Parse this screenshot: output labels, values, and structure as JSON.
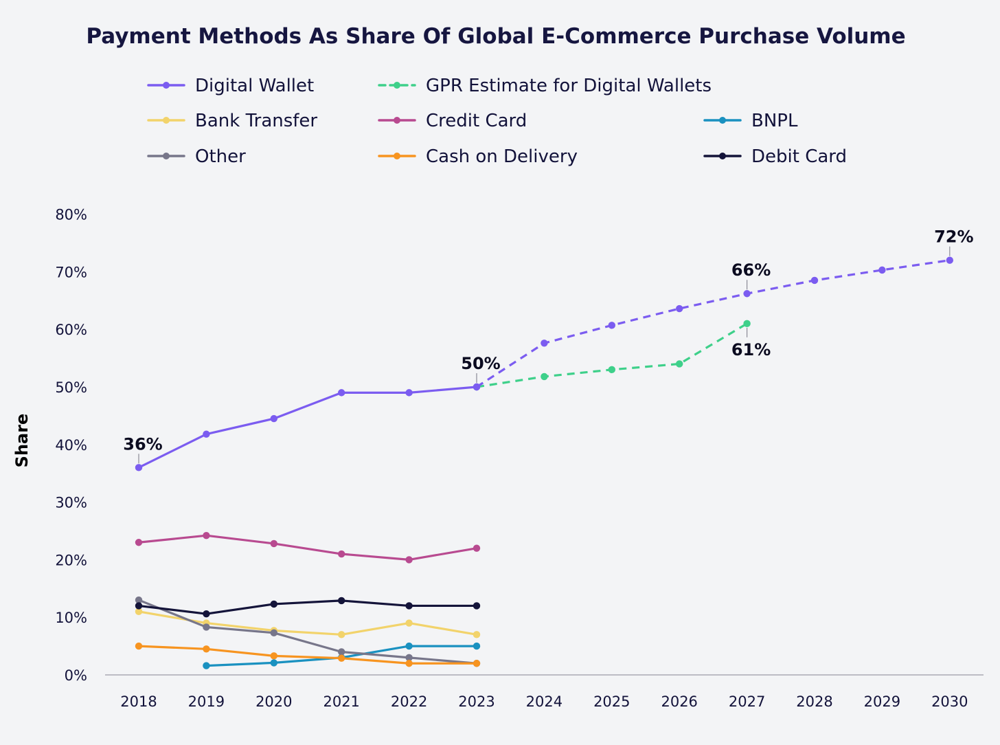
{
  "chart_data": {
    "type": "line",
    "title": "Payment Methods As Share Of Global E-Commerce Purchase Volume",
    "ylabel": "Share",
    "xlabel": "",
    "x": [
      "2018",
      "2019",
      "2020",
      "2021",
      "2022",
      "2023",
      "2024",
      "2025",
      "2026",
      "2027",
      "2028",
      "2029",
      "2030"
    ],
    "ylim": [
      0,
      80
    ],
    "yticks": [
      "0%",
      "10%",
      "20%",
      "30%",
      "40%",
      "50%",
      "60%",
      "70%",
      "80%"
    ],
    "grid": false,
    "legend_position": "top",
    "series": [
      {
        "name": "Digital Wallet",
        "color": "#7b5cf0",
        "style": "solid",
        "values": [
          36,
          41.8,
          44.5,
          49,
          49,
          50,
          null,
          null,
          null,
          null,
          null,
          null,
          null
        ]
      },
      {
        "name": "Digital Wallet",
        "color": "#7b5cf0",
        "style": "dashed",
        "legend": false,
        "values": [
          null,
          null,
          null,
          null,
          null,
          50,
          57.6,
          60.7,
          63.6,
          66.2,
          68.5,
          70.3,
          72
        ]
      },
      {
        "name": "GPR Estimate for Digital Wallets",
        "color": "#3ed08a",
        "style": "dashed",
        "values": [
          null,
          null,
          null,
          null,
          null,
          50,
          51.8,
          53,
          54,
          61,
          null,
          null,
          null
        ]
      },
      {
        "name": "Bank Transfer",
        "color": "#f2d36b",
        "style": "solid",
        "values": [
          11,
          9,
          7.7,
          7,
          9,
          7,
          null,
          null,
          null,
          null,
          null,
          null,
          null
        ]
      },
      {
        "name": "Credit Card",
        "color": "#b84a90",
        "style": "solid",
        "values": [
          23,
          24.2,
          22.8,
          21,
          20,
          22,
          null,
          null,
          null,
          null,
          null,
          null,
          null
        ]
      },
      {
        "name": "BNPL",
        "color": "#1a91c0",
        "style": "solid",
        "values": [
          null,
          1.6,
          2.1,
          3,
          5,
          5,
          null,
          null,
          null,
          null,
          null,
          null,
          null
        ]
      },
      {
        "name": "Other",
        "color": "#77768a",
        "style": "solid",
        "values": [
          13,
          8.3,
          7.3,
          4,
          3,
          2,
          null,
          null,
          null,
          null,
          null,
          null,
          null
        ]
      },
      {
        "name": "Cash on Delivery",
        "color": "#f79420",
        "style": "solid",
        "values": [
          5,
          4.5,
          3.3,
          2.9,
          2,
          2,
          null,
          null,
          null,
          null,
          null,
          null,
          null
        ]
      },
      {
        "name": "Debit Card",
        "color": "#14143a",
        "style": "solid",
        "values": [
          12,
          10.6,
          12.3,
          12.9,
          12,
          12,
          null,
          null,
          null,
          null,
          null,
          null,
          null
        ]
      }
    ],
    "legend": [
      {
        "label": "Digital Wallet",
        "color": "#7b5cf0",
        "style": "solid"
      },
      {
        "label": "GPR Estimate for Digital Wallets",
        "color": "#3ed08a",
        "style": "dashed"
      },
      {
        "label": "Bank Transfer",
        "color": "#f2d36b",
        "style": "solid"
      },
      {
        "label": "Credit Card",
        "color": "#b84a90",
        "style": "solid"
      },
      {
        "label": "BNPL",
        "color": "#1a91c0",
        "style": "solid"
      },
      {
        "label": "Other",
        "color": "#77768a",
        "style": "solid"
      },
      {
        "label": "Cash on Delivery",
        "color": "#f79420",
        "style": "solid"
      },
      {
        "label": "Debit Card",
        "color": "#14143a",
        "style": "solid"
      }
    ],
    "annotations": [
      {
        "text": "36%",
        "x": "2018",
        "y": 36,
        "placement": "above"
      },
      {
        "text": "50%",
        "x": "2023",
        "y": 50,
        "placement": "above"
      },
      {
        "text": "66%",
        "x": "2027",
        "y": 66.2,
        "placement": "above"
      },
      {
        "text": "72%",
        "x": "2030",
        "y": 72,
        "placement": "above"
      },
      {
        "text": "61%",
        "x": "2027",
        "y": 61,
        "placement": "below"
      }
    ]
  }
}
